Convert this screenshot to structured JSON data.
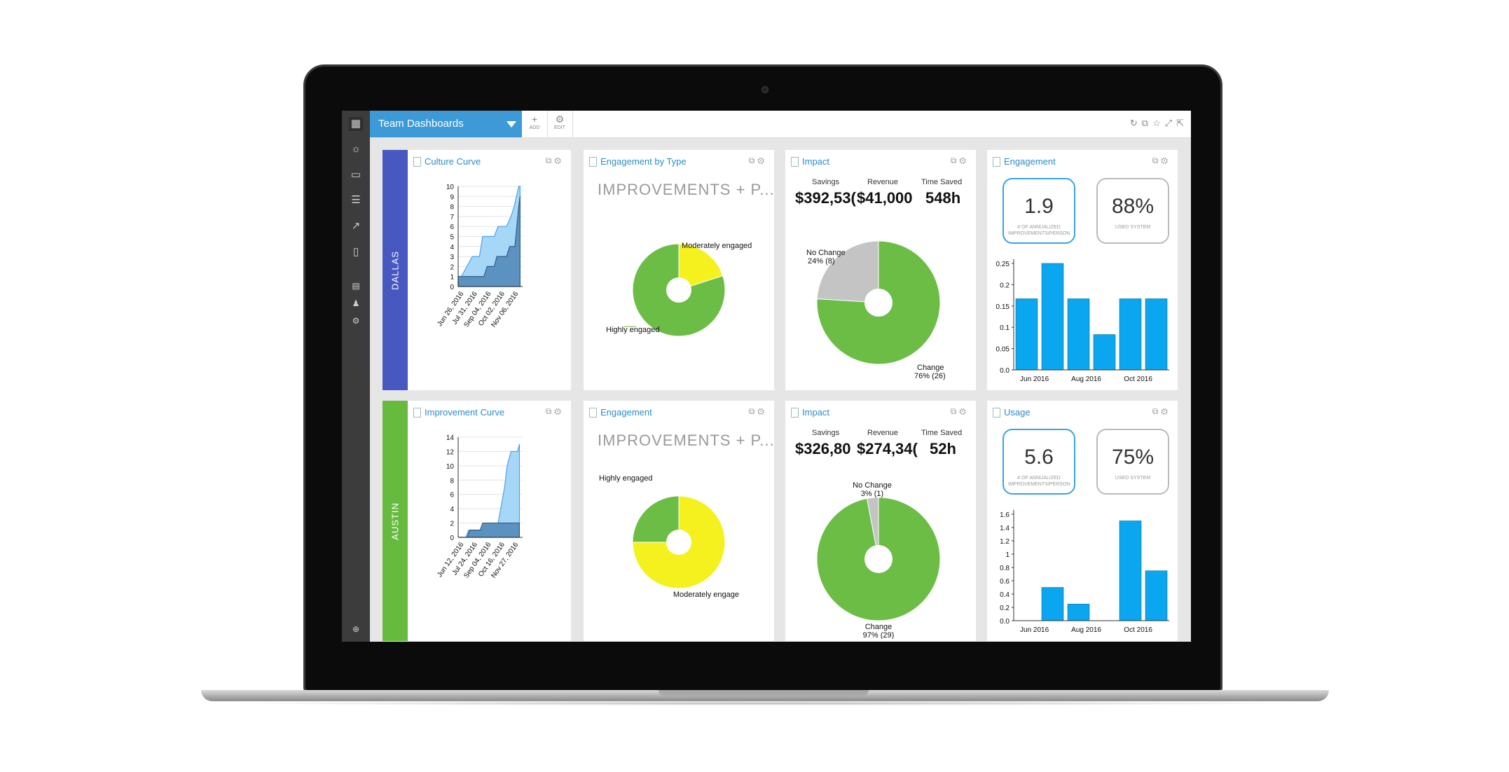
{
  "toolbar": {
    "dashboard_name": "Team Dashboards",
    "add_label": "ADD",
    "edit_label": "EDIT",
    "right_icons": [
      "refresh-icon",
      "copy-icon",
      "star-icon",
      "expand-icon",
      "share-icon"
    ]
  },
  "sidebar_icons": [
    "apps-grid-icon",
    "lightbulb-icon",
    "folder-icon",
    "list-icon",
    "trend-icon",
    "document-icon",
    "calendar-icon",
    "people-icon",
    "gear-icon",
    "collapse-icon"
  ],
  "groups": [
    {
      "label": "DALLAS",
      "color": "#4758c1"
    },
    {
      "label": "AUSTIN",
      "color": "#66bb3f"
    }
  ],
  "colors": {
    "green": "#6cbd45",
    "yellow": "#f5f11f",
    "gray": "#c4c4c4",
    "blue": "#0aa6ef",
    "light_blue": "#9dd3f6",
    "dark_blue": "#4f86b5"
  },
  "cards": {
    "culture_curve": {
      "title": "Culture Curve"
    },
    "engagement_type": {
      "title": "Engagement by Type",
      "heading": "IMPROVEMENTS + P..."
    },
    "impact_dallas": {
      "title": "Impact",
      "savings_label": "Savings",
      "savings": "$392,53(",
      "revenue_label": "Revenue",
      "revenue": "$41,000",
      "time_label": "Time Saved",
      "time": "548h"
    },
    "engagement_stats": {
      "title": "Engagement",
      "stat1": "1.9",
      "stat1_label": "# OF ANNUALIZED IMPROVEMENTS/PERSON",
      "stat2": "88%",
      "stat2_label": "USED SYSTEM"
    },
    "improvement_curve": {
      "title": "Improvement Curve"
    },
    "engagement_austin": {
      "title": "Engagement",
      "heading": "IMPROVEMENTS + P..."
    },
    "impact_austin": {
      "title": "Impact",
      "savings_label": "Savings",
      "savings": "$326,80",
      "revenue_label": "Revenue",
      "revenue": "$274,34(",
      "time_label": "Time Saved",
      "time": "52h"
    },
    "usage": {
      "title": "Usage",
      "stat1": "5.6",
      "stat1_label": "# OF ANNUALIZED IMPROVEMENTS/PERSON",
      "stat2": "75%",
      "stat2_label": "USED SYSTEM"
    }
  },
  "chart_data": [
    {
      "id": "culture_curve",
      "type": "area",
      "ylim": [
        0,
        10
      ],
      "yticks": [
        0,
        1,
        2,
        3,
        4,
        5,
        6,
        7,
        8,
        9,
        10
      ],
      "xticks": [
        "Jun 26, 2016",
        "Jul 31, 2016",
        "Sep 04, 2016",
        "Oct 02, 2016",
        "Nov 06, 2016"
      ],
      "series": [
        {
          "values": [
            [
              0,
              1
            ],
            [
              0.05,
              1
            ],
            [
              0.22,
              3
            ],
            [
              0.33,
              3
            ],
            [
              0.38,
              5
            ],
            [
              0.56,
              5
            ],
            [
              0.62,
              6
            ],
            [
              0.75,
              6
            ],
            [
              0.82,
              7
            ],
            [
              0.87,
              8
            ],
            [
              0.94,
              10
            ],
            [
              0.96,
              10
            ]
          ]
        },
        {
          "values": [
            [
              0,
              1
            ],
            [
              0.4,
              1
            ],
            [
              0.45,
              2
            ],
            [
              0.56,
              2
            ],
            [
              0.6,
              3
            ],
            [
              0.75,
              3
            ],
            [
              0.8,
              4
            ],
            [
              0.88,
              4
            ],
            [
              0.94,
              8
            ],
            [
              0.96,
              9
            ]
          ]
        }
      ]
    },
    {
      "id": "engagement_type",
      "type": "pie",
      "slices": [
        {
          "label": "Moderately engaged",
          "value": 20
        },
        {
          "label": "Highly engaged",
          "value": 80
        }
      ]
    },
    {
      "id": "impact_dallas",
      "type": "pie",
      "slices": [
        {
          "label": "Change",
          "value": 76,
          "detail": "76% (26)"
        },
        {
          "label": "No Change",
          "value": 24,
          "detail": "24% (8)"
        }
      ]
    },
    {
      "id": "engagement_bars",
      "type": "bar",
      "ylim": [
        0,
        0.25
      ],
      "yticks": [
        "0.0",
        "0.05",
        "0.1",
        "0.15",
        "0.2",
        "0.25"
      ],
      "xticks": [
        "Jun 2016",
        "Aug 2016",
        "Oct 2016"
      ],
      "values": [
        0.167,
        0.25,
        0.167,
        0.083,
        0.167,
        0.167
      ]
    },
    {
      "id": "improvement_curve",
      "type": "area",
      "ylim": [
        0,
        14
      ],
      "yticks": [
        0,
        2,
        4,
        6,
        8,
        10,
        12,
        14
      ],
      "xticks": [
        "Jun 12, 2016",
        "Jul 24, 2016",
        "Sep 04, 2016",
        "Oct 16, 2016",
        "Nov 27, 2016"
      ],
      "series": [
        {
          "values": [
            [
              0,
              0
            ],
            [
              0.12,
              0
            ],
            [
              0.16,
              1
            ],
            [
              0.38,
              1
            ],
            [
              0.42,
              2
            ],
            [
              0.62,
              2
            ],
            [
              0.68,
              5
            ],
            [
              0.72,
              7
            ],
            [
              0.76,
              10
            ],
            [
              0.82,
              12
            ],
            [
              0.92,
              12
            ],
            [
              0.95,
              13
            ]
          ]
        },
        {
          "values": [
            [
              0,
              0
            ],
            [
              0.14,
              0
            ],
            [
              0.18,
              1
            ],
            [
              0.34,
              1
            ],
            [
              0.38,
              2
            ],
            [
              0.95,
              2
            ]
          ]
        }
      ]
    },
    {
      "id": "engagement_austin",
      "type": "pie",
      "slices": [
        {
          "label": "Moderately engage",
          "value": 75
        },
        {
          "label": "Highly engaged",
          "value": 25
        }
      ]
    },
    {
      "id": "impact_austin",
      "type": "pie",
      "slices": [
        {
          "label": "Change",
          "value": 97,
          "detail": "97% (29)"
        },
        {
          "label": "No Change",
          "value": 3,
          "detail": "3% (1)"
        }
      ]
    },
    {
      "id": "usage_bars",
      "type": "bar",
      "ylim": [
        0,
        1.6
      ],
      "yticks": [
        "0.0",
        "0.2",
        "0.4",
        "0.6",
        "0.8",
        "1",
        "1.2",
        "1.4",
        "1.6"
      ],
      "xticks": [
        "Jun 2016",
        "Aug 2016",
        "Oct 2016"
      ],
      "values": [
        0,
        0.5,
        0.25,
        0,
        1.5,
        0.75
      ]
    }
  ]
}
